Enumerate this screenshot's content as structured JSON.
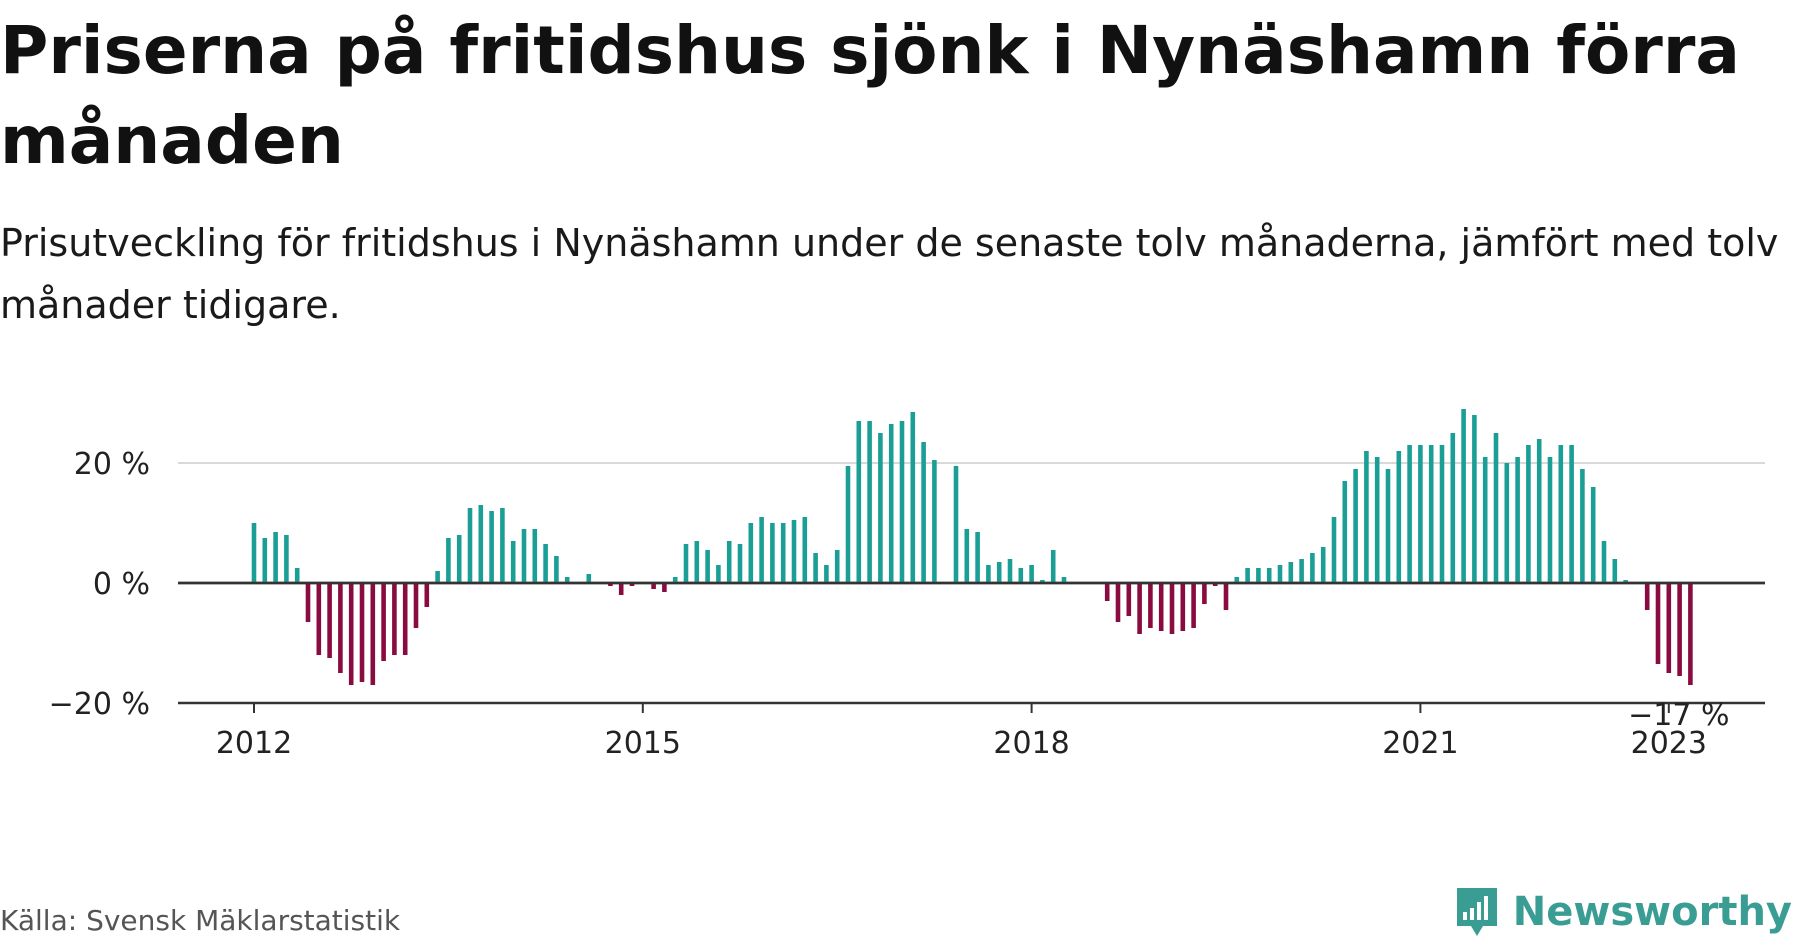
{
  "header": {
    "title": "Priserna på fritidshus sjönk i Nynäshamn förra månaden",
    "subtitle": "Prisutveckling för fritidshus i Nynäshamn under de senaste tolv månaderna, jämfört med tolv månader tidigare."
  },
  "footer": {
    "source": "Källa: Svensk Mäklarstatistik",
    "brand": "Newsworthy"
  },
  "colors": {
    "positive": "#1a9e96",
    "negative": "#8a0b3f",
    "brand": "#3a9d93"
  },
  "chart_data": {
    "type": "bar",
    "title": "Priserna på fritidshus sjönk i Nynäshamn förra månaden",
    "y_unit": "%",
    "ylim": [
      -20,
      30
    ],
    "yticks": [
      -20,
      0,
      20
    ],
    "ytick_labels": [
      "−20 %",
      "0 %",
      "20 %"
    ],
    "x_start": "2012-01",
    "x_ticks": [
      {
        "label": "2012",
        "month": 0
      },
      {
        "label": "2015",
        "month": 36
      },
      {
        "label": "2018",
        "month": 72
      },
      {
        "label": "2021",
        "month": 108
      },
      {
        "label": "2023",
        "month": 131
      }
    ],
    "grid": true,
    "annotation": {
      "text": "−17 %",
      "month": 131,
      "value": -17
    },
    "values": [
      10,
      7.5,
      8.5,
      8,
      2.5,
      -6.5,
      -12,
      -12.5,
      -15,
      -17,
      -16.5,
      -17,
      -13,
      -12,
      -12,
      -7.5,
      -4,
      2,
      7.5,
      8,
      12.5,
      13,
      12,
      12.5,
      7,
      9,
      9,
      6.5,
      4.5,
      1,
      0,
      1.5,
      0,
      -0.5,
      -2,
      -0.5,
      0,
      -1,
      -1.5,
      1,
      6.5,
      7,
      5.5,
      3,
      7,
      6.5,
      10,
      11,
      10,
      10,
      10.5,
      11,
      5,
      3,
      5.5,
      19.5,
      27,
      27,
      25,
      26.5,
      27,
      28.5,
      23.5,
      20.5,
      0,
      19.5,
      9,
      8.5,
      3,
      3.5,
      4,
      2.5,
      3,
      0.5,
      5.5,
      1,
      0,
      0,
      0,
      -3,
      -6.5,
      -5.5,
      -8.5,
      -7.5,
      -8,
      -8.5,
      -8,
      -7.5,
      -3.5,
      -0.5,
      -4.5,
      1,
      2.5,
      2.5,
      2.5,
      3,
      3.5,
      4,
      5,
      6,
      11,
      17,
      19,
      22,
      21,
      19,
      22,
      23,
      23,
      23,
      23,
      25,
      29,
      28,
      21,
      25,
      20,
      21,
      23,
      24,
      21,
      23,
      23,
      19,
      16,
      7,
      4,
      0.5,
      0,
      -4.5,
      -13.5,
      -15,
      -15.5,
      -17
    ]
  }
}
